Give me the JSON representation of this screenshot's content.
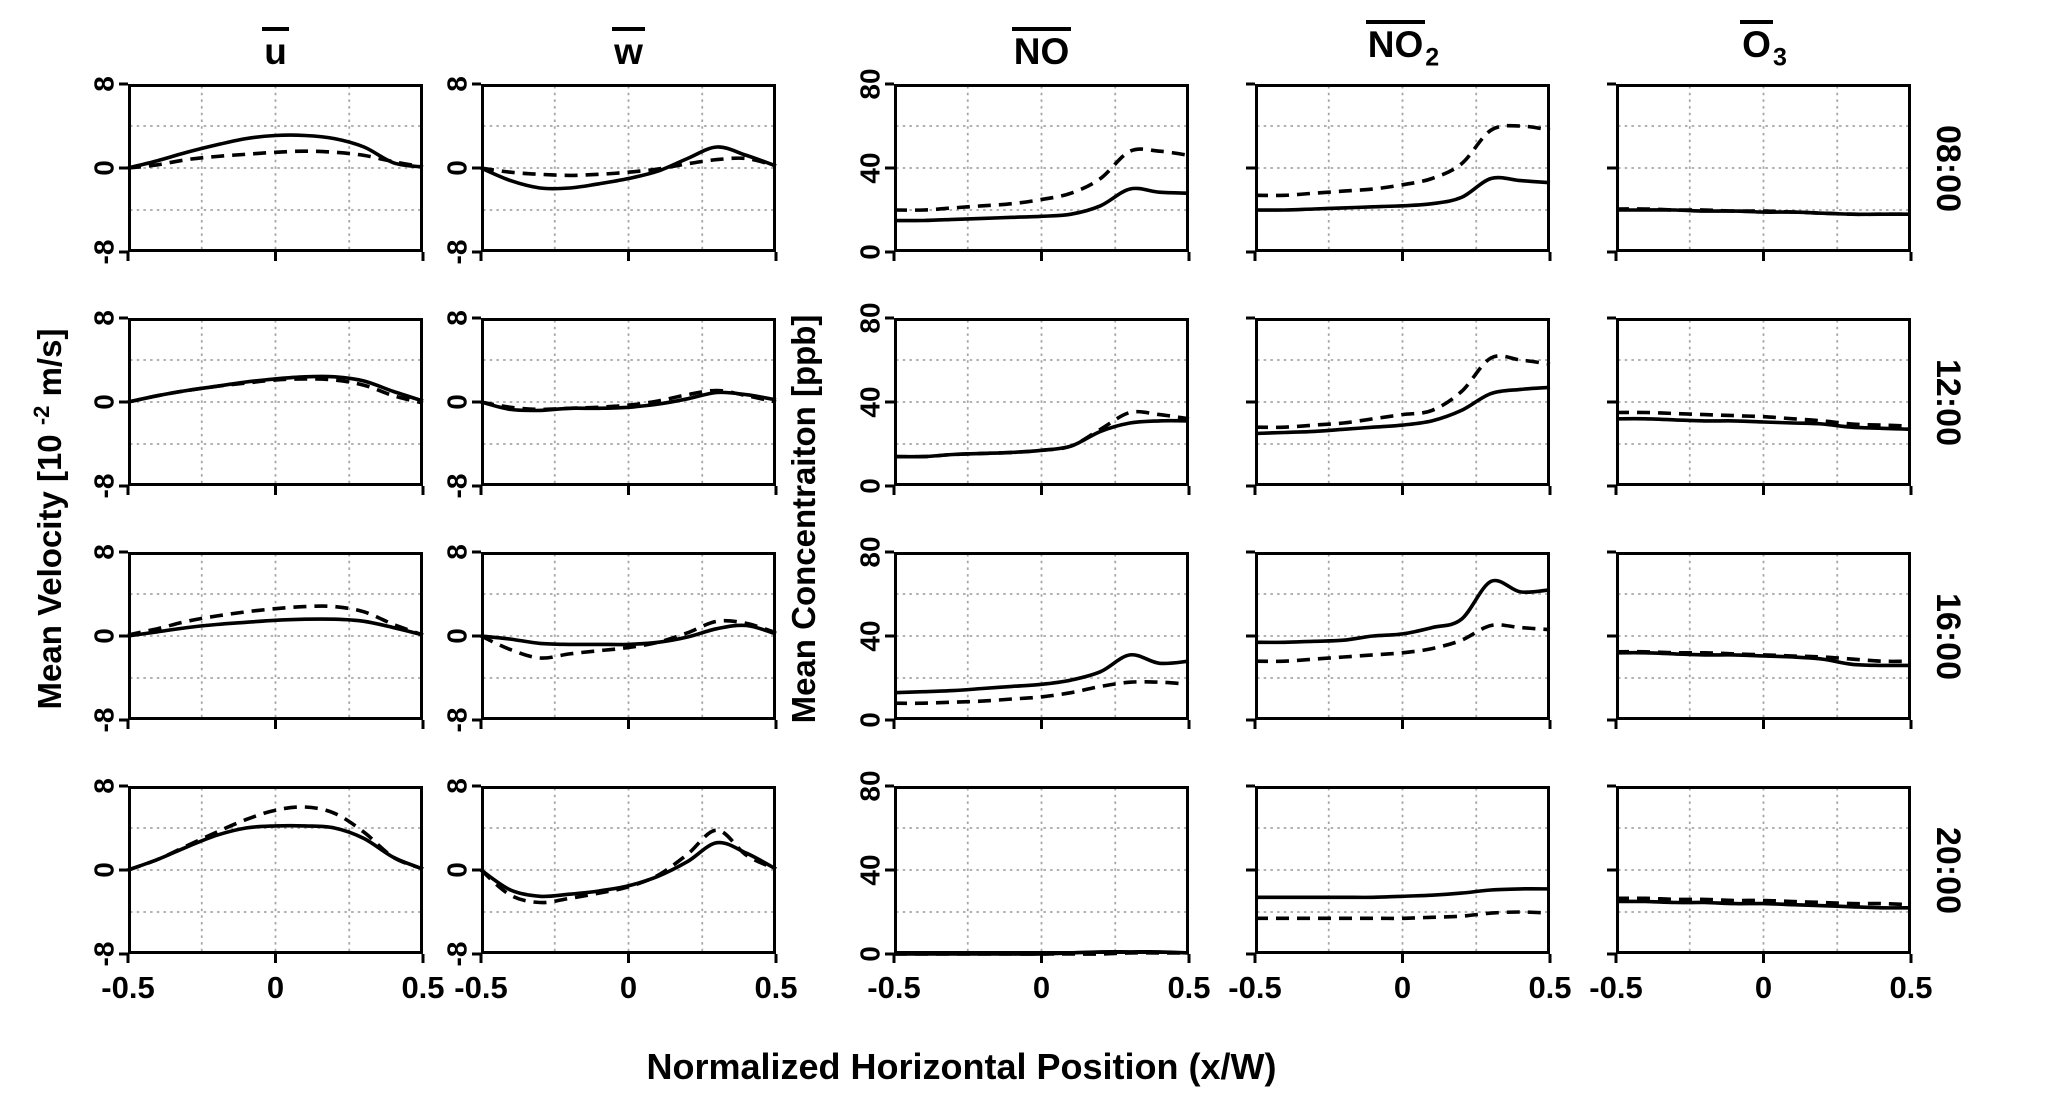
{
  "figure": {
    "xlabel": "Normalized Horizontal Position (x/W)",
    "ylabel_velocity_pre": "Mean Velocity [10 ",
    "ylabel_velocity_sup": "-2",
    "ylabel_velocity_post": " m/s]",
    "ylabel_concentration": "Mean Concentraiton [ppb]"
  },
  "colors": {
    "line": "#000000",
    "gridline": "#a6a6a6",
    "background": "#ffffff"
  },
  "chart_data": {
    "type": "line",
    "title": "",
    "xlabel": "Normalized Horizontal Position (x/W)",
    "x": [
      -0.5,
      -0.4,
      -0.3,
      -0.2,
      -0.1,
      0,
      0.1,
      0.2,
      0.3,
      0.4,
      0.5
    ],
    "xlim": [
      -0.5,
      0.5
    ],
    "x_tick_values": [
      -0.5,
      0,
      0.5
    ],
    "x_tick_labels": [
      "-0.5",
      "0",
      "0.5"
    ],
    "x_gridlines": [
      -0.25,
      0,
      0.25
    ],
    "series_styles": [
      "solid",
      "dashed"
    ],
    "columns": [
      {
        "id": "u",
        "title_overline": "u",
        "title_sub": "",
        "ylabel": "Mean Velocity [10^-2 m/s]",
        "ylim": [
          -8,
          8
        ],
        "y_tick_values": [
          8,
          0,
          -8
        ],
        "y_tick_labels": [
          "8",
          "0",
          "-8"
        ],
        "y_gridlines": [
          4,
          0,
          -4
        ],
        "show_y_labels": true
      },
      {
        "id": "w",
        "title_overline": "w",
        "title_sub": "",
        "ylabel": "Mean Velocity [10^-2 m/s]",
        "ylim": [
          -8,
          8
        ],
        "y_tick_values": [
          8,
          0,
          -8
        ],
        "y_tick_labels": [
          "8",
          "0",
          "-8"
        ],
        "y_gridlines": [
          4,
          0,
          -4
        ],
        "show_y_labels": true
      },
      {
        "id": "NO",
        "title_overline": "NO",
        "title_sub": "",
        "ylabel": "Mean Concentraiton [ppb]",
        "ylim": [
          0,
          80
        ],
        "y_tick_values": [
          80,
          40,
          0
        ],
        "y_tick_labels": [
          "80",
          "40",
          "0"
        ],
        "y_gridlines": [
          60,
          40,
          20
        ],
        "show_y_labels": true
      },
      {
        "id": "NO2",
        "title_overline": "NO",
        "title_sub": "2",
        "ylabel": "Mean Concentraiton [ppb]",
        "ylim": [
          0,
          80
        ],
        "y_tick_values": [
          80,
          40,
          0
        ],
        "y_tick_labels": [],
        "y_gridlines": [
          60,
          40,
          20
        ],
        "show_y_labels": false
      },
      {
        "id": "O3",
        "title_overline": "O",
        "title_sub": "3",
        "ylabel": "Mean Concentraiton [ppb]",
        "ylim": [
          0,
          80
        ],
        "y_tick_values": [
          80,
          40,
          0
        ],
        "y_tick_labels": [],
        "y_gridlines": [
          60,
          40,
          20
        ],
        "show_y_labels": false
      }
    ],
    "rows": [
      {
        "label": "08:00",
        "panels": [
          {
            "solid": [
              0,
              0.7,
              1.5,
              2.2,
              2.8,
              3.1,
              3.1,
              2.8,
              2.0,
              0.5,
              0.1
            ],
            "dashed": [
              0,
              0.3,
              0.8,
              1.1,
              1.3,
              1.5,
              1.6,
              1.5,
              1.2,
              0.6,
              0.1
            ]
          },
          {
            "solid": [
              0,
              -1.2,
              -1.9,
              -1.9,
              -1.5,
              -1.0,
              -0.3,
              0.9,
              2.0,
              1.2,
              0.2
            ],
            "dashed": [
              0,
              -0.4,
              -0.6,
              -0.7,
              -0.6,
              -0.4,
              -0.1,
              0.4,
              0.8,
              0.9,
              0.2
            ]
          },
          {
            "solid": [
              15,
              15,
              15.5,
              16,
              16.5,
              17,
              18,
              22,
              30,
              28.5,
              28
            ],
            "dashed": [
              20,
              20,
              21,
              22,
              23,
              25,
              28,
              35,
              48,
              48,
              46
            ]
          },
          {
            "solid": [
              20,
              20,
              20.5,
              21,
              21.5,
              22,
              23,
              26,
              35,
              34,
              33
            ],
            "dashed": [
              27,
              27,
              28,
              29,
              30,
              32,
              35,
              42,
              58,
              60,
              58
            ]
          },
          {
            "solid": [
              20,
              20,
              20,
              19.5,
              19.5,
              19,
              19,
              18.5,
              18,
              18,
              18
            ],
            "dashed": [
              20.5,
              20.5,
              20,
              20,
              19.5,
              19.5,
              19,
              18.5,
              18,
              18,
              18
            ]
          }
        ]
      },
      {
        "label": "12:00",
        "panels": [
          {
            "solid": [
              0,
              0.6,
              1.1,
              1.5,
              1.9,
              2.2,
              2.4,
              2.4,
              2.0,
              1.0,
              0.1
            ],
            "dashed": [
              0,
              0.6,
              1.1,
              1.5,
              1.8,
              2.1,
              2.2,
              2.1,
              1.6,
              0.6,
              -0.1
            ]
          },
          {
            "solid": [
              0,
              -0.7,
              -0.8,
              -0.6,
              -0.6,
              -0.5,
              -0.2,
              0.3,
              0.9,
              0.7,
              0.2
            ],
            "dashed": [
              0,
              -0.5,
              -0.7,
              -0.6,
              -0.5,
              -0.3,
              0.1,
              0.7,
              1.1,
              0.6,
              0
            ]
          },
          {
            "solid": [
              14,
              14,
              15,
              15.5,
              16,
              17,
              19,
              26,
              30,
              31,
              31
            ],
            "dashed": [
              14,
              14,
              15,
              15.5,
              16,
              17,
              19,
              27,
              35,
              34,
              32
            ]
          },
          {
            "solid": [
              25,
              25.5,
              26,
              27,
              28,
              29,
              31,
              36,
              44,
              46,
              47
            ],
            "dashed": [
              28,
              28,
              29,
              30,
              32,
              34,
              36,
              45,
              61,
              60,
              58
            ]
          },
          {
            "solid": [
              32,
              32,
              31.5,
              31,
              31,
              30.5,
              30,
              29.5,
              28,
              27.5,
              27
            ],
            "dashed": [
              35,
              35,
              34.5,
              34,
              33.5,
              33,
              32,
              31,
              29.5,
              29,
              28.5
            ]
          }
        ]
      },
      {
        "label": "16:00",
        "panels": [
          {
            "solid": [
              0,
              0.4,
              0.8,
              1.1,
              1.3,
              1.5,
              1.6,
              1.6,
              1.4,
              0.8,
              0.1
            ],
            "dashed": [
              0.1,
              0.7,
              1.4,
              1.9,
              2.3,
              2.6,
              2.8,
              2.8,
              2.3,
              1.1,
              0.1
            ]
          },
          {
            "solid": [
              0,
              -0.3,
              -0.7,
              -0.8,
              -0.8,
              -0.8,
              -0.6,
              -0.1,
              0.7,
              1.0,
              0.2
            ],
            "dashed": [
              0,
              -1.3,
              -2.1,
              -1.7,
              -1.4,
              -1.1,
              -0.6,
              0.3,
              1.4,
              1.2,
              0.3
            ]
          },
          {
            "solid": [
              13,
              13.5,
              14,
              15,
              16,
              17,
              19,
              23,
              31,
              27,
              28
            ],
            "dashed": [
              8,
              8,
              8.5,
              9,
              10,
              11,
              13,
              16,
              18,
              18,
              17
            ]
          },
          {
            "solid": [
              37,
              37,
              37.5,
              38,
              40,
              41,
              44,
              48,
              66,
              61,
              62
            ],
            "dashed": [
              28,
              28,
              29,
              30,
              31,
              32,
              34,
              38,
              45,
              44,
              43
            ]
          },
          {
            "solid": [
              32,
              32,
              31.5,
              31,
              31,
              30.5,
              30,
              29,
              26.5,
              26,
              26
            ],
            "dashed": [
              32.5,
              32.5,
              32,
              32,
              31.5,
              31,
              30.5,
              30,
              29,
              28,
              28
            ]
          }
        ]
      },
      {
        "label": "20:00",
        "panels": [
          {
            "solid": [
              0,
              1.0,
              2.2,
              3.3,
              4.0,
              4.2,
              4.2,
              4.0,
              3.0,
              1.2,
              0.1
            ],
            "dashed": [
              0,
              1.0,
              2.3,
              3.6,
              4.8,
              5.7,
              6.0,
              5.4,
              3.6,
              1.2,
              0.1
            ]
          },
          {
            "solid": [
              0,
              -1.9,
              -2.5,
              -2.3,
              -2.0,
              -1.5,
              -0.6,
              0.8,
              2.6,
              1.6,
              0.1
            ],
            "dashed": [
              0,
              -2.4,
              -3.1,
              -2.7,
              -2.2,
              -1.6,
              -0.5,
              1.5,
              3.8,
              1.4,
              0.1
            ]
          },
          {
            "solid": [
              0,
              0,
              0,
              0,
              0,
              0,
              0.5,
              1,
              1,
              1,
              0.5
            ],
            "dashed": [
              0,
              0,
              0,
              0,
              0,
              0,
              0,
              0,
              0.5,
              0.5,
              0.5
            ]
          },
          {
            "solid": [
              27,
              27,
              27,
              27,
              27,
              27.5,
              28,
              29,
              30.5,
              31,
              31
            ],
            "dashed": [
              17,
              17,
              17,
              17,
              17,
              17,
              17.5,
              18,
              19.5,
              20,
              19.5
            ]
          },
          {
            "solid": [
              25,
              25,
              24.5,
              24.5,
              24,
              24,
              23.5,
              23,
              22.5,
              22,
              22
            ],
            "dashed": [
              26.5,
              26.5,
              26,
              26,
              25.5,
              25.5,
              25,
              24.5,
              24,
              24,
              23.5
            ]
          }
        ]
      }
    ]
  }
}
